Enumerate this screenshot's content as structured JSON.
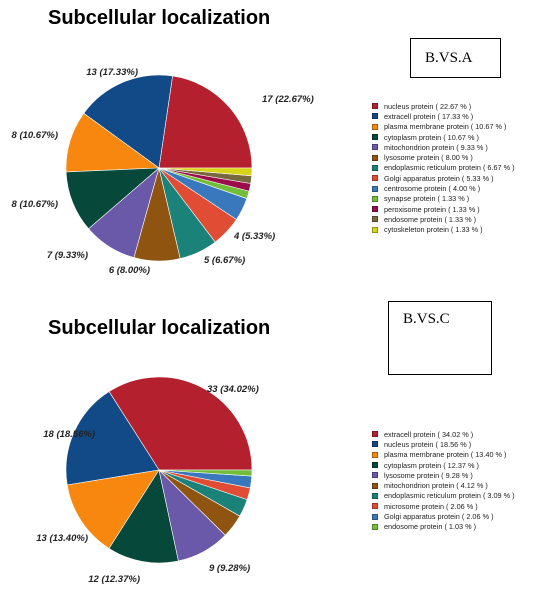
{
  "charts": [
    {
      "title": "Subcellular localization",
      "comparison": "B.VS.A",
      "chart_data": {
        "type": "pie",
        "title": "Subcellular localization",
        "slices": [
          {
            "label": "nucleus protein",
            "count": 17,
            "percent": 22.67,
            "color": "#b5202e",
            "slice_text": "17 (22.67%)",
            "legend_text": "nucleus protein  ( 22.67 % )"
          },
          {
            "label": "extracell protein",
            "count": 13,
            "percent": 17.33,
            "color": "#114a86",
            "slice_text": "13 (17.33%)",
            "legend_text": "extracell protein  ( 17.33 % )"
          },
          {
            "label": "plasma membrane protein",
            "count": 8,
            "percent": 10.67,
            "color": "#f7870f",
            "slice_text": "8 (10.67%)",
            "legend_text": "plasma membrane protein  ( 10.67 % )"
          },
          {
            "label": "cytoplasm protein",
            "count": 8,
            "percent": 10.67,
            "color": "#064839",
            "slice_text": "8 (10.67%)",
            "legend_text": "cytoplasm protein  ( 10.67 % )"
          },
          {
            "label": "mitochondrion protein",
            "count": 7,
            "percent": 9.33,
            "color": "#6a58a8",
            "slice_text": "7 (9.33%)",
            "legend_text": "mitochondrion protein  ( 9.33 % )"
          },
          {
            "label": "lysosome protein",
            "count": 6,
            "percent": 8.0,
            "color": "#8e5410",
            "slice_text": "6 (8.00%)",
            "legend_text": "lysosome protein  ( 8.00 % )"
          },
          {
            "label": "endoplasmic reticulum protein",
            "count": 5,
            "percent": 6.67,
            "color": "#1a8278",
            "slice_text": "5 (6.67%)",
            "legend_text": "endoplasmic reticulum protein  ( 6.67 % )"
          },
          {
            "label": "Golgi apparatus protein",
            "count": 4,
            "percent": 5.33,
            "color": "#e04d34",
            "slice_text": "4 (5.33%)",
            "legend_text": "Golgi apparatus protein  ( 5.33 % )"
          },
          {
            "label": "centrosome protein",
            "count": 3,
            "percent": 4.0,
            "color": "#3a78be",
            "slice_text": "",
            "legend_text": "centrosome protein  ( 4.00 % )"
          },
          {
            "label": "synapse protein",
            "count": 1,
            "percent": 1.33,
            "color": "#72bd3a",
            "slice_text": "",
            "legend_text": "synapse protein  ( 1.33 % )"
          },
          {
            "label": "peroxisome protein",
            "count": 1,
            "percent": 1.33,
            "color": "#9a0d4a",
            "slice_text": "",
            "legend_text": "peroxisome protein  ( 1.33 % )"
          },
          {
            "label": "endosome protein",
            "count": 1,
            "percent": 1.33,
            "color": "#77683e",
            "slice_text": "",
            "legend_text": "endosome protein  ( 1.33 % )"
          },
          {
            "label": "cytoskeleton protein",
            "count": 1,
            "percent": 1.33,
            "color": "#d7d317",
            "slice_text": "",
            "legend_text": "cytoskeleton protein  ( 1.33 % )"
          }
        ]
      }
    },
    {
      "title": "Subcellular localization",
      "comparison": "B.VS.C",
      "chart_data": {
        "type": "pie",
        "title": "Subcellular localization",
        "slices": [
          {
            "label": "extracell protein",
            "count": 33,
            "percent": 34.02,
            "color": "#b5202e",
            "slice_text": "33 (34.02%)",
            "legend_text": "extracell protein  ( 34.02 % )"
          },
          {
            "label": "nucleus protein",
            "count": 18,
            "percent": 18.56,
            "color": "#114a86",
            "slice_text": "18 (18.56%)",
            "legend_text": "nucleus protein  ( 18.56 % )"
          },
          {
            "label": "plasma membrane protein",
            "count": 13,
            "percent": 13.4,
            "color": "#f7870f",
            "slice_text": "13 (13.40%)",
            "legend_text": "plasma membrane protein  ( 13.40 % )"
          },
          {
            "label": "cytoplasm protein",
            "count": 12,
            "percent": 12.37,
            "color": "#064839",
            "slice_text": "12 (12.37%)",
            "legend_text": "cytoplasm protein  ( 12.37 % )"
          },
          {
            "label": "lysosome protein",
            "count": 9,
            "percent": 9.28,
            "color": "#6a58a8",
            "slice_text": "9 (9.28%)",
            "legend_text": "lysosome protein  ( 9.28 % )"
          },
          {
            "label": "mitochondrion protein",
            "count": 4,
            "percent": 4.12,
            "color": "#8e5410",
            "slice_text": "",
            "legend_text": "mitochondrion protein  ( 4.12 % )"
          },
          {
            "label": "endoplasmic reticulum protein",
            "count": 3,
            "percent": 3.09,
            "color": "#1a8278",
            "slice_text": "",
            "legend_text": "endoplasmic reticulum protein  ( 3.09 % )"
          },
          {
            "label": "microsome protein",
            "count": 2,
            "percent": 2.06,
            "color": "#e04d34",
            "slice_text": "",
            "legend_text": "microsome protein  ( 2.06 % )"
          },
          {
            "label": "Golgi apparatus protein",
            "count": 2,
            "percent": 2.06,
            "color": "#3a78be",
            "slice_text": "",
            "legend_text": "Golgi apparatus protein  ( 2.06 % )"
          },
          {
            "label": "endosome protein",
            "count": 1,
            "percent": 1.03,
            "color": "#72bd3a",
            "slice_text": "",
            "legend_text": "endosome protein  ( 1.03 % )"
          }
        ]
      }
    }
  ]
}
